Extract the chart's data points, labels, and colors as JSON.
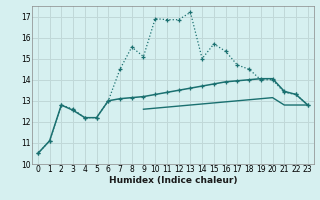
{
  "title": "",
  "xlabel": "Humidex (Indice chaleur)",
  "ylabel": "",
  "xlim": [
    -0.5,
    23.5
  ],
  "ylim": [
    10,
    17.5
  ],
  "yticks": [
    10,
    11,
    12,
    13,
    14,
    15,
    16,
    17
  ],
  "xticks": [
    0,
    1,
    2,
    3,
    4,
    5,
    6,
    7,
    8,
    9,
    10,
    11,
    12,
    13,
    14,
    15,
    16,
    17,
    18,
    19,
    20,
    21,
    22,
    23
  ],
  "background_color": "#d6f0f0",
  "grid_color": "#c0d8d8",
  "line_color": "#1a7070",
  "line1_x": [
    0,
    1,
    2,
    3,
    4,
    5,
    6,
    7,
    8,
    9,
    10,
    11,
    12,
    13,
    14,
    15,
    16,
    17,
    18,
    19,
    20,
    21,
    22,
    23
  ],
  "line1_y": [
    10.5,
    11.1,
    12.8,
    12.6,
    12.2,
    12.2,
    13.0,
    14.5,
    15.55,
    15.1,
    16.9,
    16.85,
    16.85,
    17.2,
    15.0,
    15.7,
    15.35,
    14.7,
    14.5,
    14.0,
    14.0,
    13.4,
    13.3,
    12.8
  ],
  "line2_x": [
    0,
    1,
    2,
    3,
    4,
    5,
    6,
    7,
    8,
    9,
    10,
    11,
    12,
    13,
    14,
    15,
    16,
    17,
    18,
    19,
    20,
    21,
    22,
    23
  ],
  "line2_y": [
    10.5,
    11.1,
    12.8,
    12.55,
    12.2,
    12.2,
    13.0,
    13.1,
    13.15,
    13.2,
    13.3,
    13.4,
    13.5,
    13.6,
    13.7,
    13.8,
    13.9,
    13.95,
    14.0,
    14.05,
    14.05,
    13.45,
    13.3,
    12.8
  ],
  "line3_x": [
    9,
    10,
    11,
    12,
    13,
    14,
    15,
    16,
    17,
    18,
    19,
    20,
    21,
    22,
    23
  ],
  "line3_y": [
    12.6,
    12.65,
    12.7,
    12.75,
    12.8,
    12.85,
    12.9,
    12.95,
    13.0,
    13.05,
    13.1,
    13.15,
    12.8,
    12.8,
    12.8
  ]
}
